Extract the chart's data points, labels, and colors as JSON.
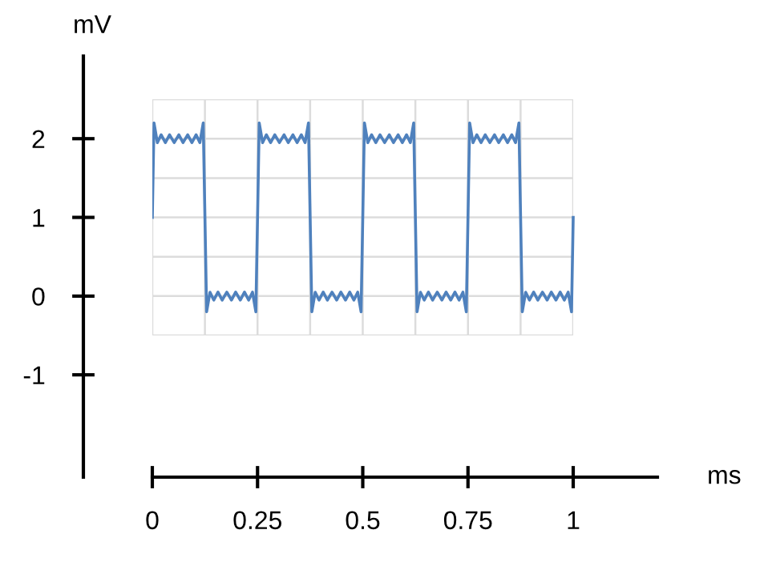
{
  "chart_data": {
    "type": "line",
    "xlabel": "ms",
    "ylabel": "mV",
    "xlim": [
      0,
      1.2
    ],
    "ylim": [
      -2.3,
      3.05
    ],
    "xticks": [
      0,
      0.25,
      0.5,
      0.75,
      1
    ],
    "yticks": [
      -1,
      0,
      1,
      2
    ],
    "grid": true,
    "line_style": "solid",
    "series": [
      {
        "color": "#4f81bd",
        "x": [
          0,
          0.004,
          0.012,
          0.021,
          0.031,
          0.041,
          0.052,
          0.063,
          0.073,
          0.084,
          0.094,
          0.104,
          0.113,
          0.121,
          0.125,
          0.129,
          0.137,
          0.146,
          0.156,
          0.166,
          0.177,
          0.188,
          0.198,
          0.209,
          0.219,
          0.229,
          0.238,
          0.246,
          0.25,
          0.254,
          0.262,
          0.271,
          0.281,
          0.291,
          0.302,
          0.313,
          0.323,
          0.334,
          0.344,
          0.354,
          0.363,
          0.371,
          0.375,
          0.379,
          0.387,
          0.396,
          0.406,
          0.416,
          0.427,
          0.438,
          0.448,
          0.459,
          0.469,
          0.479,
          0.488,
          0.496,
          0.5,
          0.504,
          0.512,
          0.521,
          0.531,
          0.541,
          0.552,
          0.563,
          0.573,
          0.584,
          0.594,
          0.604,
          0.613,
          0.621,
          0.625,
          0.629,
          0.637,
          0.646,
          0.656,
          0.666,
          0.677,
          0.688,
          0.698,
          0.709,
          0.719,
          0.729,
          0.738,
          0.746,
          0.75,
          0.754,
          0.762,
          0.771,
          0.781,
          0.791,
          0.802,
          0.813,
          0.823,
          0.834,
          0.844,
          0.854,
          0.863,
          0.871,
          0.875,
          0.879,
          0.887,
          0.896,
          0.906,
          0.916,
          0.927,
          0.938,
          0.948,
          0.959,
          0.969,
          0.979,
          0.988,
          0.996,
          1.0
        ],
        "values": [
          1,
          2.2,
          1.95,
          2.05,
          1.95,
          2.05,
          1.95,
          2.05,
          1.95,
          2.05,
          1.95,
          2.05,
          1.95,
          2.2,
          1,
          -0.2,
          0.05,
          -0.05,
          0.05,
          -0.05,
          0.05,
          -0.05,
          0.05,
          -0.05,
          0.05,
          -0.05,
          0.05,
          -0.2,
          1,
          2.2,
          1.95,
          2.05,
          1.95,
          2.05,
          1.95,
          2.05,
          1.95,
          2.05,
          1.95,
          2.05,
          1.95,
          2.2,
          1,
          -0.2,
          0.05,
          -0.05,
          0.05,
          -0.05,
          0.05,
          -0.05,
          0.05,
          -0.05,
          0.05,
          -0.05,
          0.05,
          -0.2,
          1,
          2.2,
          1.95,
          2.05,
          1.95,
          2.05,
          1.95,
          2.05,
          1.95,
          2.05,
          1.95,
          2.05,
          1.95,
          2.2,
          1,
          -0.2,
          0.05,
          -0.05,
          0.05,
          -0.05,
          0.05,
          -0.05,
          0.05,
          -0.05,
          0.05,
          -0.05,
          0.05,
          -0.2,
          1,
          2.2,
          1.95,
          2.05,
          1.95,
          2.05,
          1.95,
          2.05,
          1.95,
          2.05,
          1.95,
          2.05,
          1.95,
          2.2,
          1,
          -0.2,
          0.05,
          -0.05,
          0.05,
          -0.05,
          0.05,
          -0.05,
          0.05,
          -0.05,
          0.05,
          -0.05,
          0.05,
          -0.2,
          1
        ]
      }
    ]
  }
}
